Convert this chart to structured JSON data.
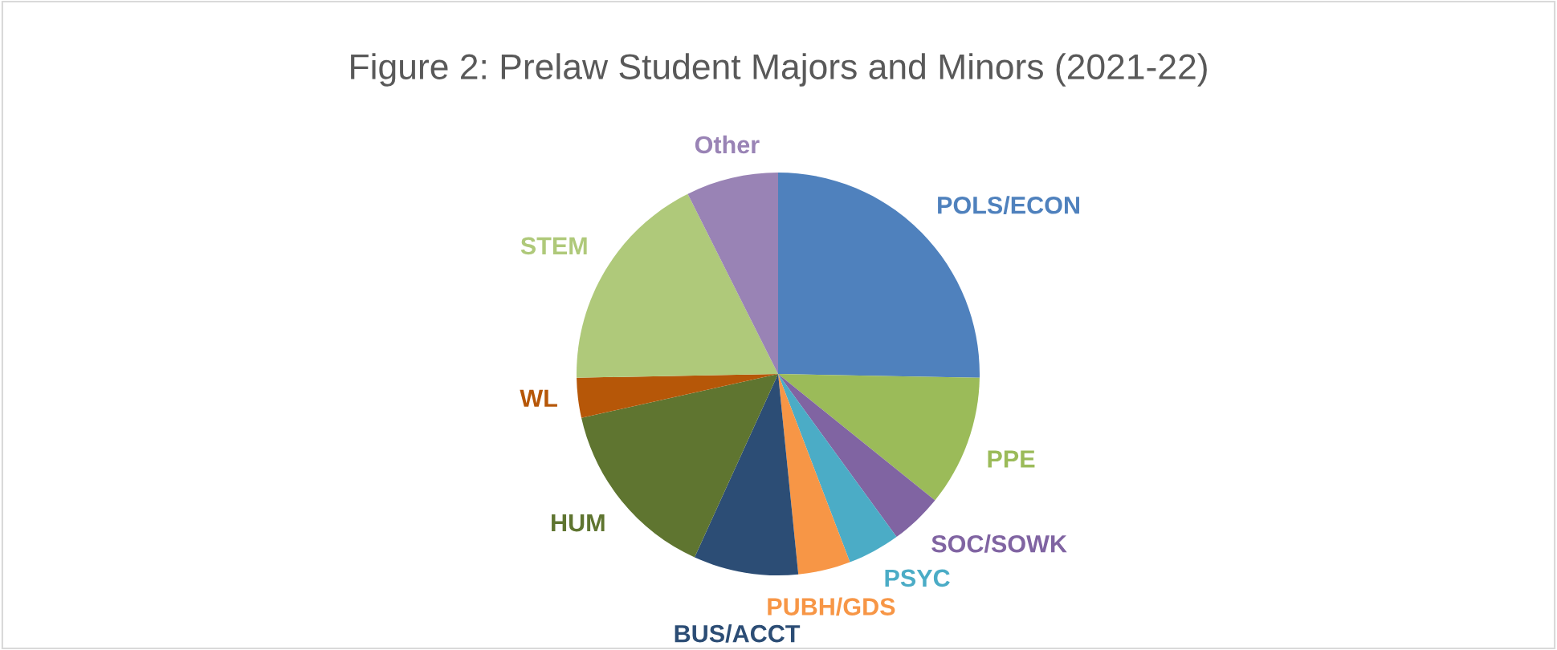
{
  "chart_data": {
    "type": "pie",
    "title": "Figure 2: Prelaw Student Majors and Minors (2021-22)",
    "categories": [
      "POLS/ECON",
      "PPE",
      "SOC/SOWK",
      "PSYC",
      "PUBH/GDS",
      "BUS/ACCT",
      "HUM",
      "WL",
      "STEM",
      "Other"
    ],
    "values": [
      25.3,
      10.5,
      4.2,
      4.2,
      4.2,
      8.4,
      14.7,
      3.2,
      17.9,
      7.4
    ],
    "colors": [
      "#4f81bd",
      "#9bbb59",
      "#8064a2",
      "#4bacc6",
      "#f79646",
      "#2c4d75",
      "#5f7530",
      "#b65708",
      "#afc97a",
      "#9983b5"
    ]
  }
}
